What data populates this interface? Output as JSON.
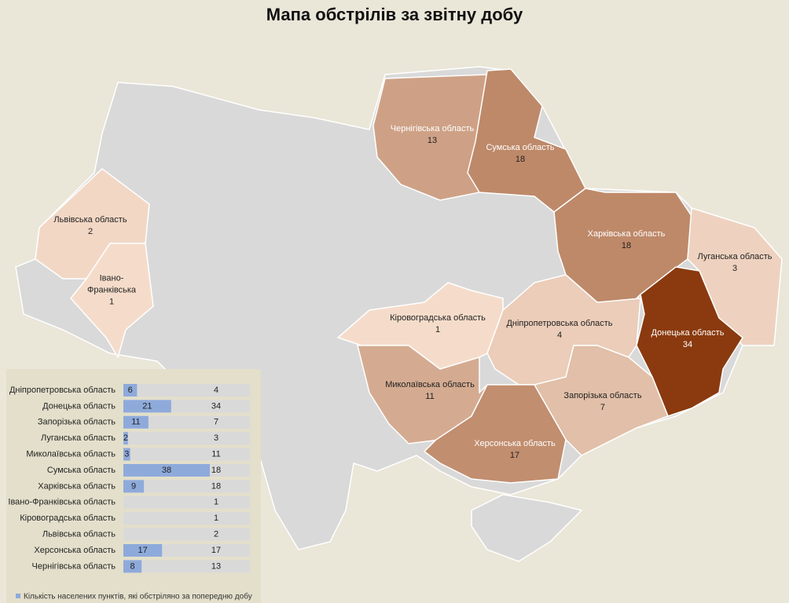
{
  "title": "Мапа обстрілів за звітну добу",
  "map": {
    "color_scale": [
      "#f8e1d0",
      "#8a3a0e"
    ],
    "regions": [
      {
        "name": "Львівська область",
        "value": 2
      },
      {
        "name": "Івано-Франківська",
        "value": 1
      },
      {
        "name": "Чернігівська область",
        "value": 13
      },
      {
        "name": "Сумська область",
        "value": 18
      },
      {
        "name": "Харківська область",
        "value": 18
      },
      {
        "name": "Луганська область",
        "value": 3
      },
      {
        "name": "Кіровоградська область",
        "value": 1
      },
      {
        "name": "Дніпропетровська область",
        "value": 4
      },
      {
        "name": "Донецька область",
        "value": 34
      },
      {
        "name": "Миколаївська область",
        "value": 11
      },
      {
        "name": "Запорізька область",
        "value": 7
      },
      {
        "name": "Херсонська область",
        "value": 17
      }
    ]
  },
  "chart": {
    "previous_color": "#8eaadb",
    "current_color": "#d9d9d9",
    "rows": [
      {
        "name": "Дніпропетровська область",
        "previous": 6,
        "current": 4
      },
      {
        "name": "Донецька область",
        "previous": 21,
        "current": 34
      },
      {
        "name": "Запорізька область",
        "previous": 11,
        "current": 7
      },
      {
        "name": "Луганська область",
        "previous": 2,
        "current": 3
      },
      {
        "name": "Миколаївська область",
        "previous": 3,
        "current": 11
      },
      {
        "name": "Сумська область",
        "previous": 38,
        "current": 18
      },
      {
        "name": "Харківська область",
        "previous": 9,
        "current": 18
      },
      {
        "name": "Івано-Франківська область",
        "previous": null,
        "current": 1
      },
      {
        "name": "Кіровоградська область",
        "previous": null,
        "current": 1
      },
      {
        "name": "Львівська область",
        "previous": null,
        "current": 2
      },
      {
        "name": "Херсонська область",
        "previous": 17,
        "current": 17
      },
      {
        "name": "Чернігівська область",
        "previous": 8,
        "current": 13
      }
    ],
    "legend": [
      "Кількість населених пунктів, які обстріляно за попередню добу"
    ]
  }
}
